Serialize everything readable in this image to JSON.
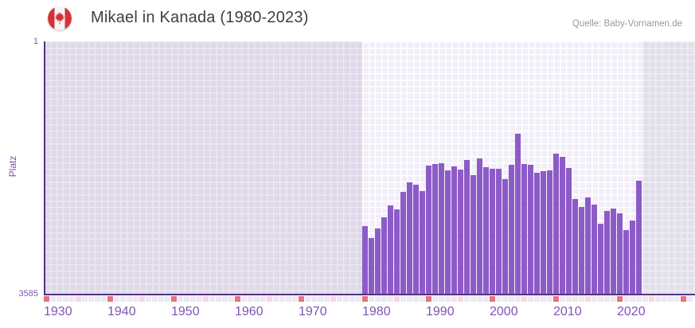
{
  "header": {
    "title": "Mikael in Kanada (1980-2023)",
    "source": "Quelle: Baby-Vornamen.de",
    "flag": "canada-flag-icon"
  },
  "chart_data": {
    "type": "bar",
    "title": "Mikael in Kanada (1980-2023)",
    "ylabel": "Platz",
    "xlabel": "",
    "y_axis": {
      "top_label": "1",
      "bottom_label": "3585",
      "min": 1,
      "max": 3585,
      "inverted": true
    },
    "x_axis": {
      "range_start": 1930,
      "range_end": 2031,
      "tick_years": [
        1930,
        1940,
        1950,
        1960,
        1970,
        1980,
        1990,
        2000,
        2010,
        2020
      ],
      "data_band": [
        1980,
        2023
      ]
    },
    "grid": true,
    "legend": false,
    "series": [
      {
        "name": "Platz",
        "x": [
          1980,
          1981,
          1982,
          1983,
          1984,
          1985,
          1986,
          1987,
          1988,
          1989,
          1990,
          1991,
          1992,
          1993,
          1994,
          1995,
          1996,
          1997,
          1998,
          1999,
          2000,
          2001,
          2002,
          2003,
          2004,
          2005,
          2006,
          2007,
          2008,
          2009,
          2010,
          2011,
          2012,
          2013,
          2014,
          2015,
          2016,
          2017,
          2018,
          2019,
          2020,
          2021,
          2022,
          2023
        ],
        "values": [
          2615,
          2790,
          2650,
          2490,
          2325,
          2375,
          2135,
          2000,
          2035,
          2125,
          1760,
          1735,
          1725,
          1825,
          1770,
          1820,
          1675,
          1895,
          1655,
          1780,
          1805,
          1805,
          1950,
          1750,
          1310,
          1735,
          1750,
          1855,
          1840,
          1825,
          1585,
          1630,
          1790,
          2235,
          2345,
          2205,
          2310,
          2580,
          2400,
          2370,
          2435,
          2675,
          2535,
          1970
        ]
      }
    ],
    "colors": {
      "bar": "#8d5bc8",
      "axis_line": "#53337f",
      "axis_text": "#7e55b2",
      "band_past": "#ded8e9",
      "band_data": "#f2eef9",
      "band_future": "#e2dfeb",
      "strip_default": "#ece8f4",
      "strip_half_decade": "#f5d8e0",
      "strip_decade": "#e0767e",
      "flag_red": "#d63236",
      "title_text": "#3f3f3f",
      "source_text": "#9a9a9a"
    }
  }
}
